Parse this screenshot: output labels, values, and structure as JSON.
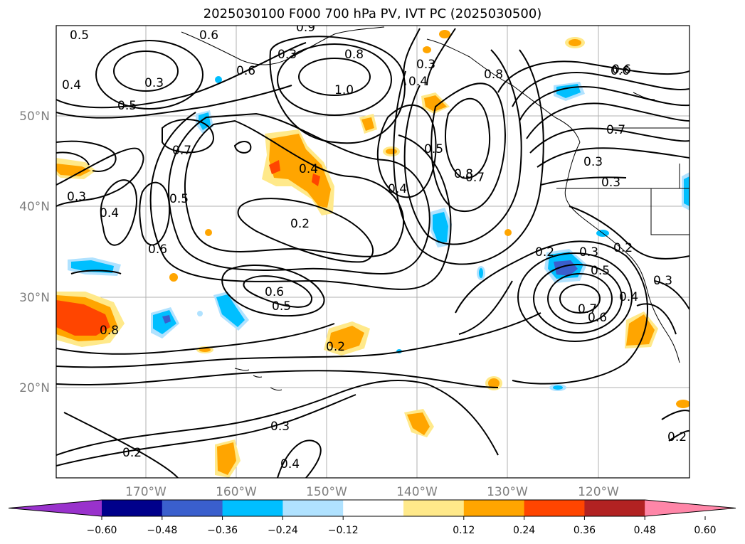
{
  "title": "2025030100 F000 700 hPa PV, IVT PC (2025030500)",
  "map": {
    "lat_labels": [
      "50°N",
      "40°N",
      "30°N",
      "20°N"
    ],
    "lon_labels": [
      "170°W",
      "160°W",
      "150°W",
      "140°W",
      "130°W",
      "120°W"
    ],
    "contour_labels": [
      "0.5",
      "0.6",
      "0.9",
      "0.8",
      "0.6",
      "0.3",
      "0.4",
      "0.5",
      "0.3",
      "1.0",
      "0.6",
      "0.4",
      "0.3",
      "0.7",
      "0.5",
      "0.8",
      "0.7",
      "0.4",
      "0.8",
      "0.3",
      "0.5",
      "0.4",
      "0.4",
      "0.2",
      "0.6",
      "0.2",
      "0.3",
      "0.5",
      "0.2",
      "0.6",
      "0.5",
      "0.7",
      "0.6",
      "0.4",
      "0.8",
      "0.2",
      "0.3",
      "0.2",
      "0.4",
      "0.3",
      "0.2",
      "0.6",
      "0.7",
      "0.3",
      "0.3"
    ]
  },
  "colorbar": {
    "tick_labels": [
      "−0.60",
      "−0.48",
      "−0.36",
      "−0.24",
      "−0.12",
      "0.12",
      "0.24",
      "0.36",
      "0.48",
      "0.60"
    ],
    "colors": [
      "#9932cc",
      "#00008b",
      "#3a5fcd",
      "#00bfff",
      "#b0e2ff",
      "#ffffff",
      "#ffe98a",
      "#ffa500",
      "#ff4500",
      "#b22222",
      "#ff86a8"
    ]
  }
}
